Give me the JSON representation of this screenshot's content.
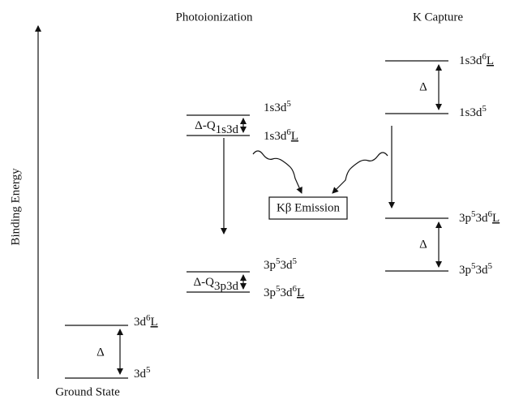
{
  "axis_label": "Binding Energy",
  "columns": {
    "photoionization": "Photoionization",
    "k_capture": "K Capture"
  },
  "ground_state": {
    "caption": "Ground State",
    "delta": "Δ",
    "upper": [
      {
        "t": "3d"
      },
      {
        "t": "6",
        "s": "sup"
      },
      {
        "t": "L",
        "s": "u"
      }
    ],
    "lower": [
      {
        "t": "3d"
      },
      {
        "t": "5",
        "s": "sup"
      }
    ]
  },
  "photo_initial": {
    "delta": [
      {
        "t": "Δ-Q"
      },
      {
        "t": "1s3d",
        "s": "sub"
      }
    ],
    "upper": [
      {
        "t": "1s3d"
      },
      {
        "t": "5",
        "s": "sup"
      }
    ],
    "lower": [
      {
        "t": "1s3d"
      },
      {
        "t": "6",
        "s": "sup"
      },
      {
        "t": "L",
        "s": "u"
      }
    ]
  },
  "photo_final": {
    "delta": [
      {
        "t": "Δ-Q"
      },
      {
        "t": "3p3d",
        "s": "sub"
      }
    ],
    "upper": [
      {
        "t": "3p"
      },
      {
        "t": "5",
        "s": "sup"
      },
      {
        "t": "3d"
      },
      {
        "t": "5",
        "s": "sup"
      }
    ],
    "lower": [
      {
        "t": "3p"
      },
      {
        "t": "5",
        "s": "sup"
      },
      {
        "t": "3d"
      },
      {
        "t": "6",
        "s": "sup"
      },
      {
        "t": "L",
        "s": "u"
      }
    ]
  },
  "kcap_initial": {
    "delta": "Δ",
    "upper": [
      {
        "t": "1s3d"
      },
      {
        "t": "6",
        "s": "sup"
      },
      {
        "t": "L",
        "s": "u"
      }
    ],
    "lower": [
      {
        "t": "1s3d"
      },
      {
        "t": "5",
        "s": "sup"
      }
    ]
  },
  "kcap_final": {
    "delta": "Δ",
    "upper": [
      {
        "t": "3p"
      },
      {
        "t": "5",
        "s": "sup"
      },
      {
        "t": "3d"
      },
      {
        "t": "6",
        "s": "sup"
      },
      {
        "t": "L",
        "s": "u"
      }
    ],
    "lower": [
      {
        "t": "3p"
      },
      {
        "t": "5",
        "s": "sup"
      },
      {
        "t": "3d"
      },
      {
        "t": "5",
        "s": "sup"
      }
    ]
  },
  "emission_box": "Kβ Emission"
}
